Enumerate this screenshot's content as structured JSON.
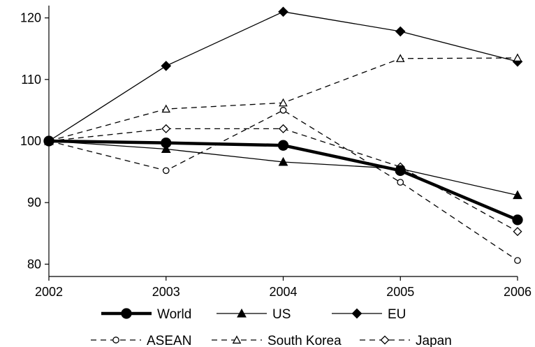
{
  "chart_data": {
    "type": "line",
    "title": "",
    "xlabel": "",
    "ylabel": "",
    "x": [
      2002,
      2003,
      2004,
      2005,
      2006
    ],
    "xlim": [
      2002,
      2006
    ],
    "ylim": [
      78,
      122
    ],
    "y_ticks": [
      80,
      90,
      100,
      110,
      120
    ],
    "x_tick_labels": [
      "2002",
      "2003",
      "2004",
      "2005",
      "2006"
    ],
    "y_tick_labels": [
      "80",
      "90",
      "100",
      "110",
      "120"
    ],
    "grid": false,
    "legend_position": "bottom",
    "series": [
      {
        "name": "World",
        "values": [
          100,
          99.7,
          99.3,
          95.2,
          87.2
        ],
        "marker": "filled-circle",
        "line": "solid-thick",
        "color": "#000000"
      },
      {
        "name": "US",
        "values": [
          100,
          98.7,
          96.6,
          95.5,
          91.2
        ],
        "marker": "filled-triangle",
        "line": "solid",
        "color": "#000000"
      },
      {
        "name": "EU",
        "values": [
          100,
          112.2,
          121.0,
          117.8,
          112.9
        ],
        "marker": "filled-diamond",
        "line": "solid",
        "color": "#000000"
      },
      {
        "name": "ASEAN",
        "values": [
          100,
          95.2,
          105.0,
          93.3,
          80.6
        ],
        "marker": "hollow-circle",
        "line": "dashed",
        "color": "#000000"
      },
      {
        "name": "South Korea",
        "values": [
          100,
          105.2,
          106.2,
          113.4,
          113.5
        ],
        "marker": "hollow-triangle",
        "line": "dashed",
        "color": "#000000"
      },
      {
        "name": "Japan",
        "values": [
          100,
          102.0,
          102.0,
          95.8,
          85.3
        ],
        "marker": "hollow-diamond",
        "line": "dashed",
        "color": "#000000"
      }
    ]
  }
}
